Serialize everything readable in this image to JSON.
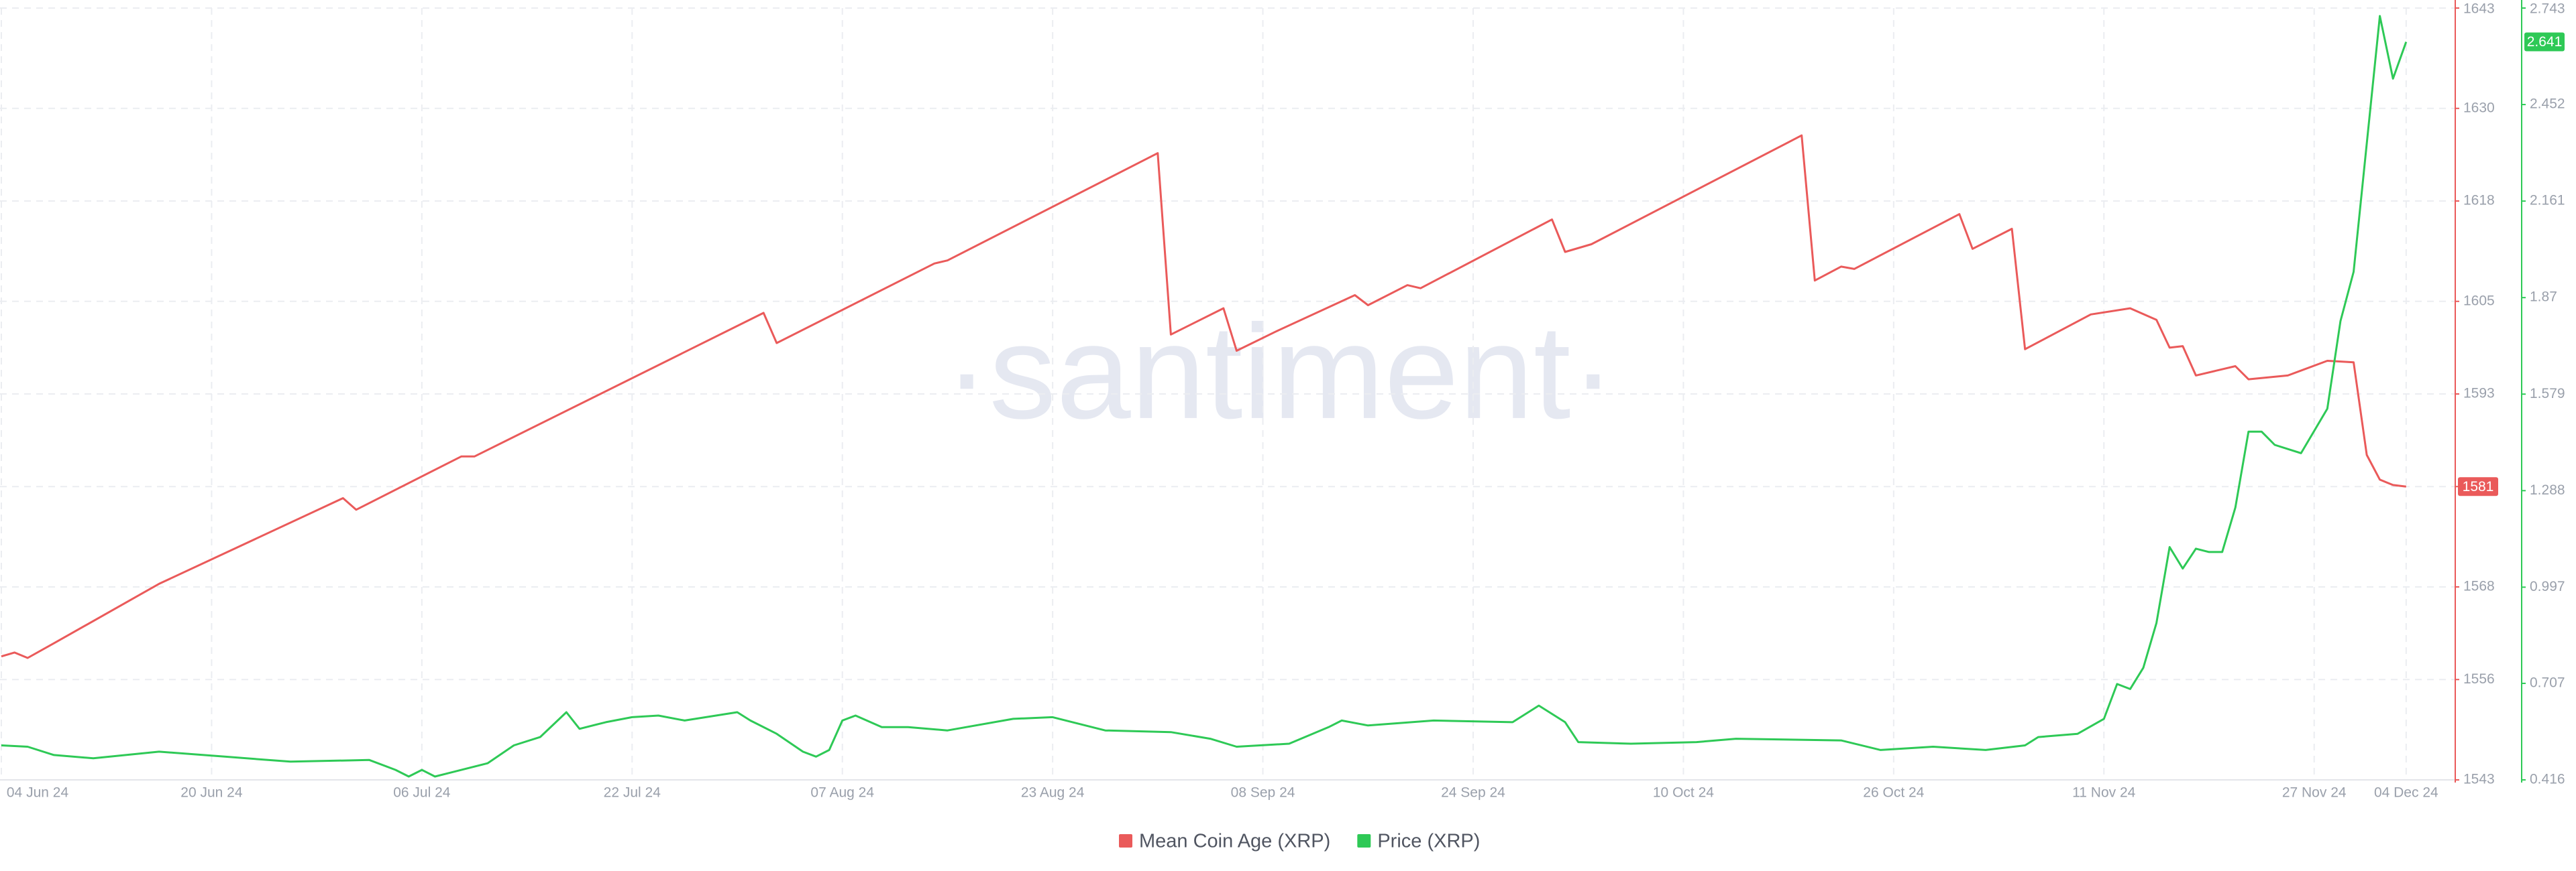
{
  "chart_data": {
    "type": "line",
    "watermark": "·santiment·",
    "xlim": [
      "2024-06-04",
      "2024-12-06"
    ],
    "ylim": [
      1543,
      1643
    ],
    "y2lim": [
      0.416,
      2.743
    ],
    "grid": true,
    "legend": "bottom",
    "xticks": [
      {
        "value": "2024-06-04",
        "label": "04 Jun 24"
      },
      {
        "value": "2024-06-20",
        "label": "20 Jun 24"
      },
      {
        "value": "2024-07-06",
        "label": "06 Jul 24"
      },
      {
        "value": "2024-07-22",
        "label": "22 Jul 24"
      },
      {
        "value": "2024-08-07",
        "label": "07 Aug 24"
      },
      {
        "value": "2024-08-23",
        "label": "23 Aug 24"
      },
      {
        "value": "2024-09-08",
        "label": "08 Sep 24"
      },
      {
        "value": "2024-09-24",
        "label": "24 Sep 24"
      },
      {
        "value": "2024-10-10",
        "label": "10 Oct 24"
      },
      {
        "value": "2024-10-26",
        "label": "26 Oct 24"
      },
      {
        "value": "2024-11-11",
        "label": "11 Nov 24"
      },
      {
        "value": "2024-11-27",
        "label": "27 Nov 24"
      },
      {
        "value": "2024-12-04",
        "label": "04 Dec 24"
      }
    ],
    "yticks": [
      1543,
      1556,
      1568,
      1581,
      1593,
      1605,
      1618,
      1630,
      1643
    ],
    "y2ticks": [
      0.416,
      0.707,
      0.997,
      1.288,
      1.579,
      1.87,
      2.161,
      2.452,
      2.743
    ],
    "series": [
      {
        "name": "Mean Coin Age (XRP)",
        "color": "#ea5a5a",
        "axis": "y",
        "x": [
          "2024-06-04",
          "2024-06-05",
          "2024-06-06",
          "2024-06-08",
          "2024-06-16",
          "2024-06-30",
          "2024-07-01",
          "2024-07-09",
          "2024-07-10",
          "2024-08-01",
          "2024-08-02",
          "2024-08-14",
          "2024-08-15",
          "2024-08-31",
          "2024-09-01",
          "2024-09-05",
          "2024-09-06",
          "2024-09-09",
          "2024-09-15",
          "2024-09-16",
          "2024-09-19",
          "2024-09-20",
          "2024-09-30",
          "2024-10-01",
          "2024-10-03",
          "2024-10-19",
          "2024-10-20",
          "2024-10-22",
          "2024-10-23",
          "2024-10-31",
          "2024-11-01",
          "2024-11-04",
          "2024-11-05",
          "2024-11-10",
          "2024-11-13",
          "2024-11-15",
          "2024-11-16",
          "2024-11-17",
          "2024-11-18",
          "2024-11-21",
          "2024-11-22",
          "2024-11-25",
          "2024-11-28",
          "2024-11-30",
          "2024-12-01",
          "2024-12-02",
          "2024-12-03",
          "2024-12-04"
        ],
        "values": [
          1559.0,
          1559.5,
          1558.8,
          1560.7,
          1568.4,
          1579.5,
          1578.0,
          1584.9,
          1584.9,
          1603.5,
          1599.6,
          1609.9,
          1610.3,
          1624.2,
          1600.7,
          1604.1,
          1598.6,
          1601.1,
          1605.8,
          1604.5,
          1607.1,
          1606.7,
          1615.6,
          1611.4,
          1612.4,
          1626.5,
          1607.7,
          1609.5,
          1609.2,
          1616.3,
          1611.8,
          1614.4,
          1598.8,
          1603.3,
          1604.1,
          1602.6,
          1599.0,
          1599.2,
          1595.4,
          1596.6,
          1594.9,
          1595.4,
          1597.3,
          1597.1,
          1585.1,
          1581.9,
          1581.2,
          1581
        ]
      },
      {
        "name": "Price (XRP)",
        "color": "#2ec956",
        "axis": "y2",
        "x": [
          "2024-06-04",
          "2024-06-06",
          "2024-06-08",
          "2024-06-11",
          "2024-06-16",
          "2024-06-21",
          "2024-06-26",
          "2024-07-02",
          "2024-07-04",
          "2024-07-05",
          "2024-07-06",
          "2024-07-07",
          "2024-07-08",
          "2024-07-11",
          "2024-07-13",
          "2024-07-15",
          "2024-07-17",
          "2024-07-18",
          "2024-07-20",
          "2024-07-22",
          "2024-07-24",
          "2024-07-26",
          "2024-07-30",
          "2024-07-31",
          "2024-08-02",
          "2024-08-04",
          "2024-08-05",
          "2024-08-06",
          "2024-08-07",
          "2024-08-08",
          "2024-08-10",
          "2024-08-12",
          "2024-08-15",
          "2024-08-20",
          "2024-08-23",
          "2024-08-27",
          "2024-09-01",
          "2024-09-04",
          "2024-09-06",
          "2024-09-10",
          "2024-09-13",
          "2024-09-14",
          "2024-09-16",
          "2024-09-21",
          "2024-09-27",
          "2024-09-29",
          "2024-10-01",
          "2024-10-02",
          "2024-10-06",
          "2024-10-11",
          "2024-10-14",
          "2024-10-22",
          "2024-10-25",
          "2024-10-29",
          "2024-11-02",
          "2024-11-05",
          "2024-11-06",
          "2024-11-09",
          "2024-11-11",
          "2024-11-12",
          "2024-11-13",
          "2024-11-14",
          "2024-11-15",
          "2024-11-16",
          "2024-11-17",
          "2024-11-18",
          "2024-11-19",
          "2024-11-20",
          "2024-11-21",
          "2024-11-22",
          "2024-11-23",
          "2024-11-24",
          "2024-11-26",
          "2024-11-28",
          "2024-11-29",
          "2024-11-30",
          "2024-12-02",
          "2024-12-03",
          "2024-12-04"
        ],
        "values": [
          0.52,
          0.516,
          0.491,
          0.481,
          0.501,
          0.486,
          0.471,
          0.476,
          0.446,
          0.426,
          0.446,
          0.426,
          0.436,
          0.466,
          0.52,
          0.545,
          0.62,
          0.57,
          0.59,
          0.605,
          0.61,
          0.595,
          0.62,
          0.595,
          0.555,
          0.501,
          0.486,
          0.506,
          0.595,
          0.61,
          0.575,
          0.575,
          0.565,
          0.6,
          0.605,
          0.565,
          0.56,
          0.54,
          0.516,
          0.525,
          0.575,
          0.595,
          0.58,
          0.595,
          0.59,
          0.64,
          0.59,
          0.53,
          0.525,
          0.53,
          0.54,
          0.535,
          0.506,
          0.516,
          0.506,
          0.52,
          0.545,
          0.555,
          0.6,
          0.705,
          0.69,
          0.754,
          0.889,
          1.118,
          1.053,
          1.113,
          1.103,
          1.103,
          1.237,
          1.466,
          1.466,
          1.426,
          1.401,
          1.535,
          1.799,
          1.948,
          2.719,
          2.53,
          2.641
        ]
      }
    ]
  }
}
